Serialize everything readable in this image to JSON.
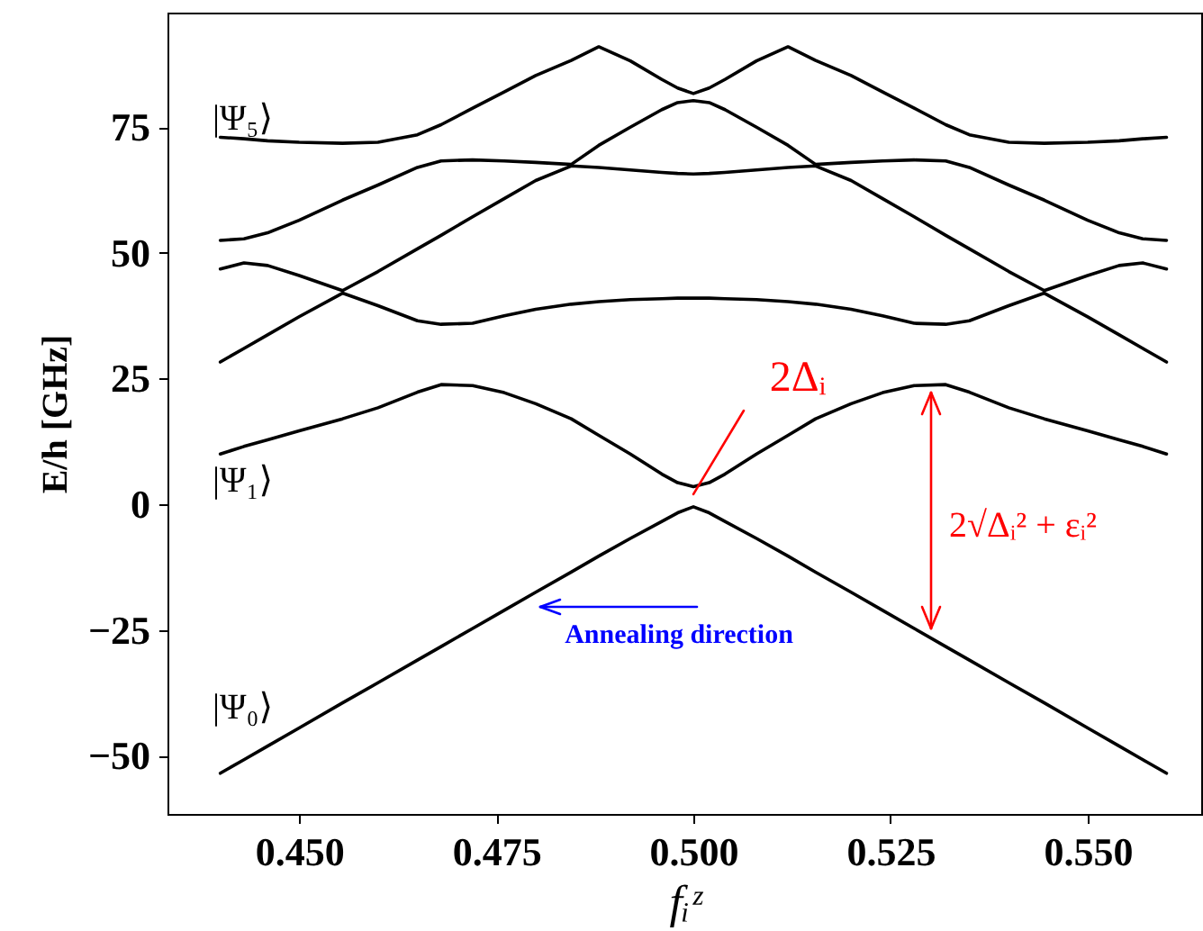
{
  "chart_data": {
    "type": "line",
    "xlabel": "fᵢᶻ",
    "ylabel": "E/h [GHz]",
    "x": [
      0.44,
      0.443,
      0.446,
      0.45,
      0.4555,
      0.46,
      0.465,
      0.468,
      0.472,
      0.476,
      0.48,
      0.4845,
      0.488,
      0.492,
      0.496,
      0.498,
      0.5,
      0.502,
      0.504,
      0.508,
      0.512,
      0.5155,
      0.52,
      0.524,
      0.528,
      0.532,
      0.535,
      0.54,
      0.5445,
      0.55,
      0.554,
      0.557,
      0.56
    ],
    "series": [
      {
        "color": "#000000",
        "values": [
          -53.5,
          -50.8,
          -48.1,
          -44.5,
          -39.5,
          -35.5,
          -31,
          -28.3,
          -24.7,
          -21.1,
          -17.5,
          -13.5,
          -10.3,
          -6.8,
          -3.4,
          -1.7,
          -0.5,
          -1.7,
          -3.4,
          -6.8,
          -10.3,
          -13.5,
          -17.5,
          -21.1,
          -24.7,
          -28.3,
          -31,
          -35.5,
          -39.5,
          -44.5,
          -48.1,
          -50.8,
          -53.5
        ]
      },
      {
        "color": "#000000",
        "values": [
          10,
          11.5,
          12.8,
          14.6,
          17,
          19.2,
          22.3,
          23.8,
          23.6,
          22.2,
          20,
          17,
          13.7,
          10,
          6,
          4.3,
          3.5,
          4.3,
          6,
          10,
          13.7,
          17,
          20,
          22.2,
          23.6,
          23.8,
          22.3,
          19.2,
          17,
          14.6,
          12.8,
          11.5,
          10
        ]
      },
      {
        "color": "#000000",
        "values": [
          28.3,
          31,
          33.7,
          37.3,
          42,
          39.5,
          36.5,
          35.8,
          36,
          37.5,
          38.8,
          39.8,
          40.3,
          40.7,
          40.9,
          41,
          41,
          41,
          40.9,
          40.7,
          40.3,
          39.8,
          38.8,
          37.5,
          36,
          35.8,
          36.5,
          39.5,
          42,
          37.3,
          33.7,
          31,
          28.3
        ]
      },
      {
        "color": "#000000",
        "values": [
          46.8,
          48,
          47.5,
          45.5,
          42.5,
          46.3,
          50.8,
          53.5,
          57.2,
          60.8,
          64.4,
          67.3,
          67,
          66.5,
          66,
          65.8,
          65.7,
          65.8,
          66,
          66.5,
          67,
          67.3,
          64.4,
          60.8,
          57.2,
          53.5,
          50.8,
          46.3,
          42.5,
          45.5,
          47.5,
          48,
          46.8
        ]
      },
      {
        "color": "#000000",
        "values": [
          52.5,
          52.8,
          54,
          56.5,
          60.5,
          63.5,
          67,
          68.3,
          68.5,
          68.3,
          68,
          67.6,
          71.4,
          75,
          78.5,
          79.9,
          80.3,
          79.9,
          78.5,
          75,
          71.4,
          67.6,
          68,
          68.3,
          68.5,
          68.3,
          67,
          63.5,
          60.5,
          56.5,
          54,
          52.8,
          52.5
        ]
      },
      {
        "color": "#000000",
        "values": [
          73,
          72.7,
          72.3,
          72,
          71.8,
          72,
          73.5,
          75.5,
          78.8,
          82,
          85.3,
          88.3,
          91,
          88.2,
          84.5,
          82.8,
          81.7,
          82.8,
          84.5,
          88.2,
          91,
          88.3,
          85.3,
          82,
          78.8,
          75.5,
          73.5,
          72,
          71.8,
          72,
          72.3,
          72.7,
          73
        ]
      }
    ],
    "xlim": [
      0.4333,
      0.5644
    ],
    "xticks": [
      {
        "value": 0.45,
        "label": "0.450"
      },
      {
        "value": 0.475,
        "label": "0.475"
      },
      {
        "value": 0.5,
        "label": "0.500"
      },
      {
        "value": 0.525,
        "label": "0.525"
      },
      {
        "value": 0.55,
        "label": "0.550"
      }
    ],
    "ylim": [
      -61.6,
      97.8
    ],
    "yticks": [
      {
        "value": -50,
        "label": "−50"
      },
      {
        "value": -25,
        "label": "−25"
      },
      0,
      25,
      50,
      75
    ],
    "grid": false,
    "marker": "none",
    "line_style": "solid",
    "annotations": [
      "|Ψ₅⟩",
      "|Ψ₁⟩",
      "|Ψ₀⟩",
      {
        "text": "2Δᵢ",
        "x": 0.5,
        "y": 2
      },
      "2√Δᵢ² + εᵢ²",
      "Annealing direction"
    ]
  }
}
